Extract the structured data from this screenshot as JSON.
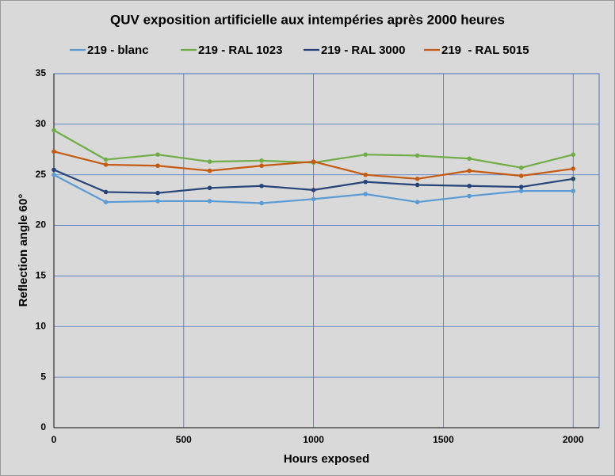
{
  "chart_data": {
    "type": "line",
    "title": "QUV exposition artificielle aux intempéries après 2000 heures",
    "x_label": "Hours exposed",
    "y_label": "Reflection angle  60°",
    "x": [
      0,
      200,
      400,
      600,
      800,
      1000,
      1200,
      1400,
      1600,
      1800,
      2000
    ],
    "series": [
      {
        "name": "219 - blanc",
        "color": "#5b9bd5",
        "values": [
          25.0,
          22.3,
          22.4,
          22.4,
          22.2,
          22.6,
          23.1,
          22.3,
          22.9,
          23.4,
          23.4
        ]
      },
      {
        "name": "219 - RAL 1023",
        "color": "#70ad47",
        "values": [
          29.4,
          26.5,
          27.0,
          26.3,
          26.4,
          26.2,
          27.0,
          26.9,
          26.6,
          25.7,
          27.0
        ]
      },
      {
        "name": "219 - RAL 3000",
        "color": "#264478",
        "values": [
          25.5,
          23.3,
          23.2,
          23.7,
          23.9,
          23.5,
          24.3,
          24.0,
          23.9,
          23.8,
          24.6
        ]
      },
      {
        "name": "219  - RAL 5015",
        "color": "#c55a11",
        "values": [
          27.3,
          26.0,
          25.9,
          25.4,
          25.9,
          26.3,
          25.0,
          24.6,
          25.4,
          24.9,
          25.6
        ]
      }
    ],
    "xlim": [
      0,
      2100
    ],
    "xticks": [
      0,
      500,
      1000,
      1500,
      2000
    ],
    "ylim": [
      0,
      35
    ],
    "yticks": [
      0,
      5,
      10,
      15,
      20,
      25,
      30,
      35
    ],
    "grid": true,
    "legend": "top"
  }
}
